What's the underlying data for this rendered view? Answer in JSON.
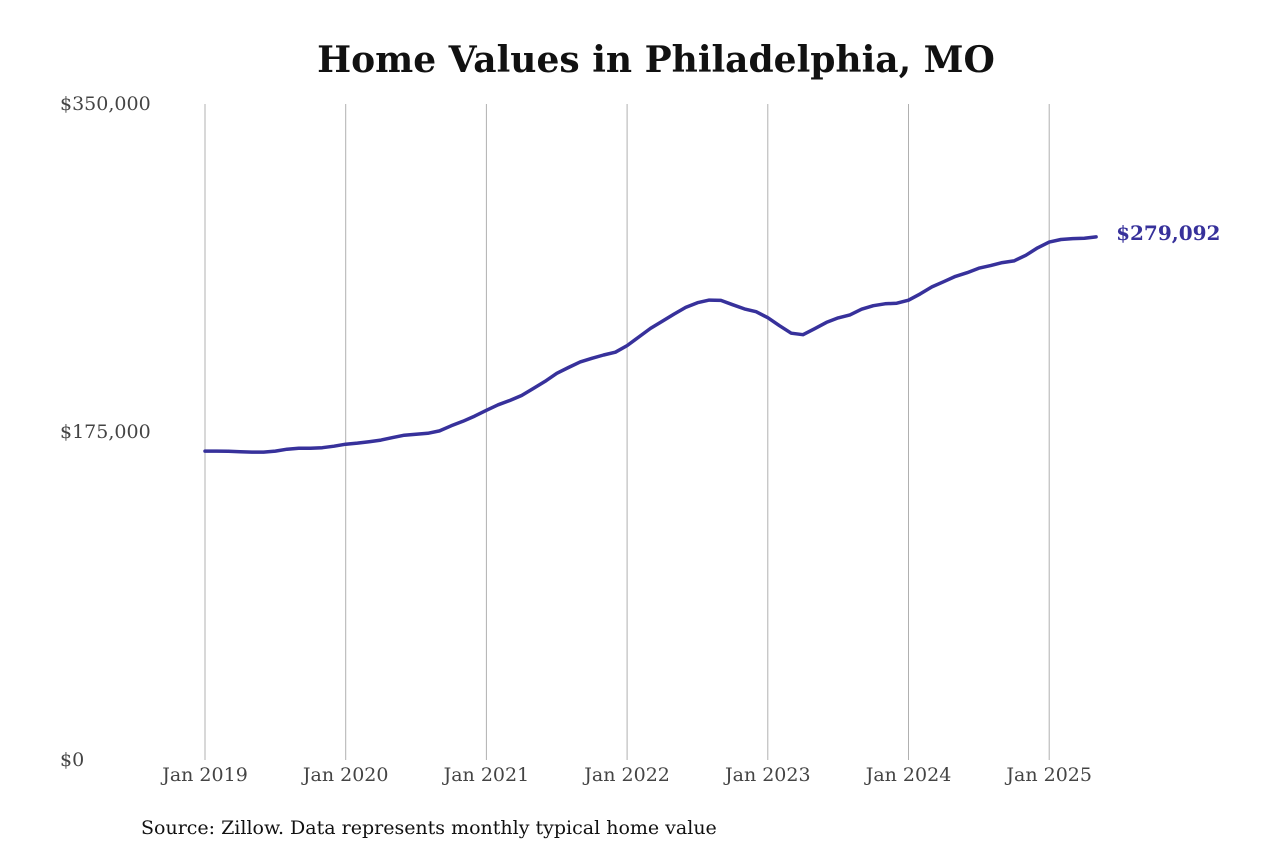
{
  "chart_data": {
    "type": "line",
    "title": "Home Values in Philadelphia, MO",
    "xlabel": "",
    "ylabel": "",
    "x_ticks": [
      "Jan 2019",
      "Jan 2020",
      "Jan 2021",
      "Jan 2022",
      "Jan 2023",
      "Jan 2024",
      "Jan 2025"
    ],
    "y_ticks": [
      "$350,000",
      "$175,000",
      "$0"
    ],
    "y_tick_values": [
      350000,
      175000,
      0
    ],
    "ylim": [
      0,
      350000
    ],
    "xlim": [
      "2019-01",
      "2025-12"
    ],
    "grid": "vertical",
    "end_label": "$279,092",
    "series": [
      {
        "color": "#37319b",
        "points": [
          [
            "2019-01",
            164800
          ],
          [
            "2019-02",
            164800
          ],
          [
            "2019-03",
            164700
          ],
          [
            "2019-04",
            164500
          ],
          [
            "2019-05",
            164300
          ],
          [
            "2019-06",
            164300
          ],
          [
            "2019-07",
            164800
          ],
          [
            "2019-08",
            165800
          ],
          [
            "2019-09",
            166300
          ],
          [
            "2019-10",
            166300
          ],
          [
            "2019-11",
            166600
          ],
          [
            "2019-12",
            167400
          ],
          [
            "2020-01",
            168500
          ],
          [
            "2020-02",
            169100
          ],
          [
            "2020-03",
            169800
          ],
          [
            "2020-04",
            170700
          ],
          [
            "2020-05",
            172000
          ],
          [
            "2020-06",
            173300
          ],
          [
            "2020-07",
            173800
          ],
          [
            "2020-08",
            174300
          ],
          [
            "2020-09",
            175600
          ],
          [
            "2020-10",
            178300
          ],
          [
            "2020-11",
            180700
          ],
          [
            "2020-12",
            183500
          ],
          [
            "2021-01",
            186600
          ],
          [
            "2021-02",
            189500
          ],
          [
            "2021-03",
            191800
          ],
          [
            "2021-04",
            194500
          ],
          [
            "2021-05",
            198200
          ],
          [
            "2021-06",
            202000
          ],
          [
            "2021-07",
            206300
          ],
          [
            "2021-08",
            209400
          ],
          [
            "2021-09",
            212400
          ],
          [
            "2021-10",
            214300
          ],
          [
            "2021-11",
            216100
          ],
          [
            "2021-12",
            217600
          ],
          [
            "2022-01",
            221100
          ],
          [
            "2022-02",
            225700
          ],
          [
            "2022-03",
            230300
          ],
          [
            "2022-04",
            234100
          ],
          [
            "2022-05",
            237900
          ],
          [
            "2022-06",
            241500
          ],
          [
            "2022-07",
            244000
          ],
          [
            "2022-08",
            245400
          ],
          [
            "2022-09",
            245200
          ],
          [
            "2022-10",
            242900
          ],
          [
            "2022-11",
            240700
          ],
          [
            "2022-12",
            239200
          ],
          [
            "2023-01",
            236000
          ],
          [
            "2023-02",
            231700
          ],
          [
            "2023-03",
            227700
          ],
          [
            "2023-04",
            226900
          ],
          [
            "2023-05",
            230100
          ],
          [
            "2023-06",
            233500
          ],
          [
            "2023-07",
            235900
          ],
          [
            "2023-08",
            237500
          ],
          [
            "2023-09",
            240500
          ],
          [
            "2023-10",
            242400
          ],
          [
            "2023-11",
            243400
          ],
          [
            "2023-12",
            243700
          ],
          [
            "2024-01",
            245300
          ],
          [
            "2024-02",
            248700
          ],
          [
            "2024-03",
            252400
          ],
          [
            "2024-04",
            255200
          ],
          [
            "2024-05",
            258000
          ],
          [
            "2024-06",
            260000
          ],
          [
            "2024-07",
            262400
          ],
          [
            "2024-08",
            263800
          ],
          [
            "2024-09",
            265400
          ],
          [
            "2024-10",
            266300
          ],
          [
            "2024-11",
            269300
          ],
          [
            "2024-12",
            273200
          ],
          [
            "2025-01",
            276300
          ],
          [
            "2025-02",
            277700
          ],
          [
            "2025-03",
            278200
          ],
          [
            "2025-04",
            278400
          ],
          [
            "2025-05",
            279092
          ]
        ]
      }
    ]
  },
  "footer": {
    "source": "Source: Zillow. Data represents monthly typical home value"
  }
}
